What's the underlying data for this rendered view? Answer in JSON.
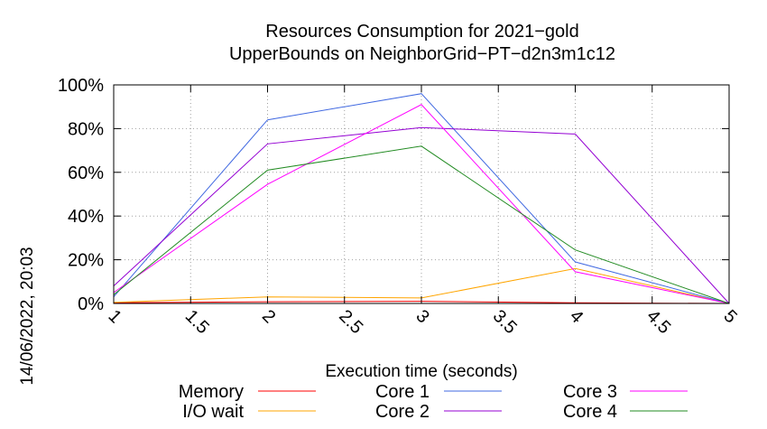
{
  "chart_data": {
    "type": "line",
    "title": "Resources Consumption for 2021−gold",
    "subtitle": "UpperBounds on NeighborGrid−PT−d2n3m1c12",
    "xlabel": "Execution time (seconds)",
    "ylabel": "",
    "timestamp": "14/06/2022, 20:03",
    "xlim": [
      1,
      5
    ],
    "ylim": [
      0,
      100
    ],
    "x_ticks": [
      "1",
      "1.5",
      "2",
      "2.5",
      "3",
      "3.5",
      "4",
      "4.5",
      "5"
    ],
    "y_ticks": [
      "0%",
      "20%",
      "40%",
      "60%",
      "80%",
      "100%"
    ],
    "grid": true,
    "legend_position": "bottom",
    "series": [
      {
        "name": "Memory",
        "color": "#ff0000",
        "x": [
          1,
          2,
          3,
          4,
          5
        ],
        "y": [
          0.3,
          0.8,
          1.0,
          0.3,
          0
        ]
      },
      {
        "name": "I/O wait",
        "color": "#ffa500",
        "x": [
          1,
          2,
          3,
          4,
          5
        ],
        "y": [
          0.5,
          3.0,
          2.5,
          16.0,
          0
        ]
      },
      {
        "name": "Core 1",
        "color": "#4169e1",
        "x": [
          1,
          2,
          3,
          4,
          5
        ],
        "y": [
          3.0,
          84.0,
          96.0,
          19.0,
          0
        ]
      },
      {
        "name": "Core 2",
        "color": "#9400d3",
        "x": [
          1,
          2,
          3,
          4,
          5
        ],
        "y": [
          8.0,
          73.0,
          80.5,
          77.5,
          0
        ]
      },
      {
        "name": "Core 3",
        "color": "#ff00ff",
        "x": [
          1,
          2,
          3,
          4,
          5
        ],
        "y": [
          5.0,
          54.5,
          91.0,
          14.5,
          0
        ]
      },
      {
        "name": "Core 4",
        "color": "#228b22",
        "x": [
          1,
          2,
          3,
          4,
          5
        ],
        "y": [
          4.0,
          61.0,
          72.0,
          24.5,
          0
        ]
      }
    ]
  }
}
